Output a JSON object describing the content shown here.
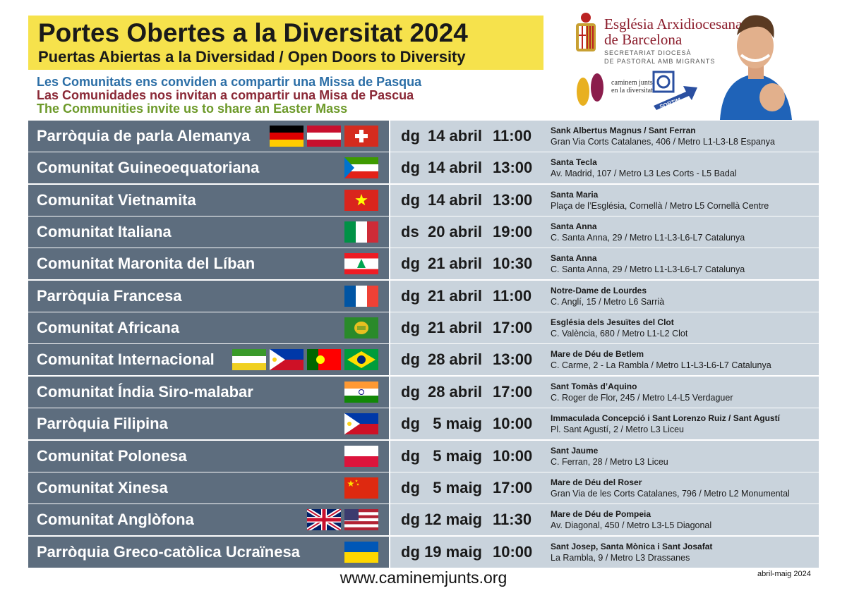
{
  "header": {
    "title": "Portes Obertes a la Diversitat 2024",
    "subtitle": "Puertas Abiertas a la Diversidad / Open Doors to Diversity"
  },
  "intro": [
    "Les Comunitats ens conviden a compartir una Missa de Pasqua",
    "Las Comunidades nos invitan a compartir una Misa de Pascua",
    "The Communities invite us to share an Easter Mass"
  ],
  "logos": {
    "org_line1": "Església Arxidiocesana",
    "org_line2": "de Barcelona",
    "dept_line1": "SECRETARIAT DIOCESÀ",
    "dept_line2": "DE PASTORAL AMB MIGRANTS",
    "caminem": "caminem junts en la diversitat",
    "sortim": "SORTIM"
  },
  "table": {
    "rows": [
      {
        "community": "Parròquia de parla Alemanya",
        "day": "dg",
        "date": "14 abril",
        "time": "11:00",
        "place": "Sank Albertus Magnus / Sant Ferran",
        "address": "Gran Via Corts Catalanes, 406 / Metro L1-L3-L8 Espanya"
      },
      {
        "community": "Comunitat Guineoequatoriana",
        "day": "dg",
        "date": "14 abril",
        "time": "13:00",
        "place": "Santa Tecla",
        "address": "Av. Madrid, 107 / Metro L3 Les Corts - L5 Badal"
      },
      {
        "community": "Comunitat Vietnamita",
        "day": "dg",
        "date": "14 abril",
        "time": "13:00",
        "place": "Santa Maria",
        "address": "Plaça de l’Església, Cornellà / Metro L5 Cornellà Centre"
      },
      {
        "community": "Comunitat Italiana",
        "day": "ds",
        "date": "20 abril",
        "time": "19:00",
        "place": "Santa Anna",
        "address": "C. Santa Anna, 29 / Metro L1-L3-L6-L7 Catalunya"
      },
      {
        "community": "Comunitat Maronita del Líban",
        "day": "dg",
        "date": "21 abril",
        "time": "10:30",
        "place": "Santa Anna",
        "address": "C. Santa Anna, 29 / Metro L1-L3-L6-L7 Catalunya"
      },
      {
        "community": "Parròquia Francesa",
        "day": "dg",
        "date": "21 abril",
        "time": "11:00",
        "place": "Notre-Dame de Lourdes",
        "address": "C. Anglí, 15 / Metro L6 Sarrià"
      },
      {
        "community": "Comunitat Africana",
        "day": "dg",
        "date": "21 abril",
        "time": "17:00",
        "place": "Església dels Jesuïtes del Clot",
        "address": "C. València, 680 / Metro L1-L2 Clot"
      },
      {
        "community": "Comunitat Internacional",
        "day": "dg",
        "date": "28 abril",
        "time": "13:00",
        "place": "Mare de Déu de Betlem",
        "address": "C. Carme, 2 - La Rambla / Metro L1-L3-L6-L7 Catalunya"
      },
      {
        "community": "Comunitat Índia Siro-malabar",
        "day": "dg",
        "date": "28 abril",
        "time": "17:00",
        "place": "Sant Tomàs d’Aquino",
        "address": "C. Roger de Flor, 245 / Metro L4-L5 Verdaguer"
      },
      {
        "community": "Parròquia Filipina",
        "day": "dg",
        "date": "5 maig",
        "time": "10:00",
        "place": "Immaculada Concepció i Sant Lorenzo Ruiz / Sant Agustí",
        "address": "Pl. Sant Agustí, 2 / Metro L3 Liceu"
      },
      {
        "community": "Comunitat Polonesa",
        "day": "dg",
        "date": "5 maig",
        "time": "10:00",
        "place": "Sant Jaume",
        "address": "C. Ferran, 28 / Metro L3 Liceu"
      },
      {
        "community": "Comunitat Xinesa",
        "day": "dg",
        "date": "5 maig",
        "time": "17:00",
        "place": "Mare de Déu del Roser",
        "address": "Gran Via de les Corts Catalanes, 796 / Metro L2 Monumental"
      },
      {
        "community": "Comunitat Anglòfona",
        "day": "dg",
        "date": "12 maig",
        "time": "11:30",
        "place": "Mare de Déu de Pompeia",
        "address": "Av. Diagonal, 450 / Metro L3-L5 Diagonal"
      },
      {
        "community": "Parròquia Greco-catòlica Ucraïnesa",
        "day": "dg",
        "date": "19 maig",
        "time": "10:00",
        "place": "Sant Josep, Santa Mònica i Sant Josafat",
        "address": "La Rambla, 9 / Metro L3 Drassanes"
      }
    ]
  },
  "footer": {
    "url": "www.caminemjunts.org",
    "date": "abril-maig 2024"
  }
}
